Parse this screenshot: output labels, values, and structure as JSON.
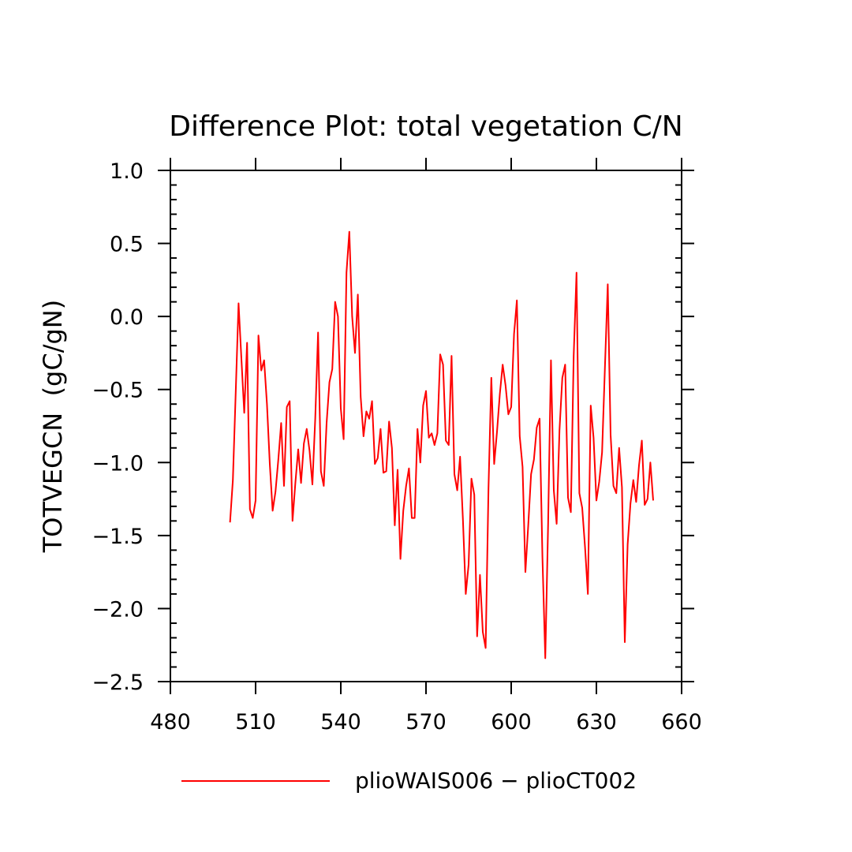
{
  "chart_data": {
    "type": "line",
    "title": "Difference Plot: total vegetation C/N",
    "xlabel": "",
    "ylabel": "TOTVEGCN  (gC/gN)",
    "xlim": [
      480,
      660
    ],
    "ylim": [
      -2.5,
      1.0
    ],
    "x_ticks": [
      480,
      510,
      540,
      570,
      600,
      630,
      660
    ],
    "x_tick_labels": [
      "480",
      "510",
      "540",
      "570",
      "600",
      "630",
      "660"
    ],
    "y_ticks": [
      1.0,
      0.5,
      0.0,
      -0.5,
      -1.0,
      -1.5,
      -2.0,
      -2.5
    ],
    "y_tick_labels": [
      "1.0",
      "0.5",
      "0.0",
      "−0.5",
      "−1.0",
      "−1.5",
      "−2.0",
      "−2.5"
    ],
    "grid": false,
    "legend_position": "bottom",
    "series": [
      {
        "name": "plioWAIS006 − plioCT002",
        "color": "#ff0000",
        "x": [
          501,
          502,
          503,
          504,
          505,
          506,
          507,
          508,
          509,
          510,
          511,
          512,
          513,
          514,
          515,
          516,
          517,
          518,
          519,
          520,
          521,
          522,
          523,
          524,
          525,
          526,
          527,
          528,
          529,
          530,
          531,
          532,
          533,
          534,
          535,
          536,
          537,
          538,
          539,
          540,
          541,
          542,
          543,
          544,
          545,
          546,
          547,
          548,
          549,
          550,
          551,
          552,
          553,
          554,
          555,
          556,
          557,
          558,
          559,
          560,
          561,
          562,
          563,
          564,
          565,
          566,
          567,
          568,
          569,
          570,
          571,
          572,
          573,
          574,
          575,
          576,
          577,
          578,
          579,
          580,
          581,
          582,
          583,
          584,
          585,
          586,
          587,
          588,
          589,
          590,
          591,
          592,
          593,
          594,
          595,
          596,
          597,
          598,
          599,
          600,
          601,
          602,
          603,
          604,
          605,
          606,
          607,
          608,
          609,
          610,
          611,
          612,
          613,
          614,
          615,
          616,
          617,
          618,
          619,
          620,
          621,
          622,
          623,
          624,
          625,
          626,
          627,
          628,
          629,
          630,
          631,
          632,
          633,
          634,
          635,
          636,
          637,
          638,
          639,
          640,
          641,
          642,
          643,
          644,
          645,
          646,
          647,
          648,
          649,
          650
        ],
        "values": [
          -1.41,
          -1.12,
          -0.52,
          0.09,
          -0.29,
          -0.66,
          -0.18,
          -1.32,
          -1.38,
          -1.26,
          -0.13,
          -0.37,
          -0.3,
          -0.6,
          -1.01,
          -1.33,
          -1.2,
          -0.98,
          -0.73,
          -1.16,
          -0.62,
          -0.58,
          -1.4,
          -1.14,
          -0.91,
          -1.14,
          -0.87,
          -0.77,
          -0.92,
          -1.15,
          -0.7,
          -0.11,
          -1.06,
          -1.16,
          -0.73,
          -0.45,
          -0.36,
          0.1,
          0.0,
          -0.63,
          -0.84,
          0.3,
          0.58,
          0.0,
          -0.25,
          0.15,
          -0.55,
          -0.82,
          -0.65,
          -0.7,
          -0.58,
          -1.01,
          -0.97,
          -0.77,
          -1.07,
          -1.06,
          -0.72,
          -0.9,
          -1.43,
          -1.05,
          -1.66,
          -1.33,
          -1.16,
          -1.04,
          -1.38,
          -1.38,
          -0.77,
          -1.0,
          -0.61,
          -0.51,
          -0.83,
          -0.8,
          -0.88,
          -0.8,
          -0.26,
          -0.33,
          -0.85,
          -0.88,
          -0.27,
          -1.08,
          -1.19,
          -0.96,
          -1.39,
          -1.9,
          -1.7,
          -1.11,
          -1.22,
          -2.19,
          -1.77,
          -2.16,
          -2.27,
          -1.18,
          -0.42,
          -1.01,
          -0.79,
          -0.53,
          -0.33,
          -0.47,
          -0.67,
          -0.62,
          -0.12,
          0.11,
          -0.82,
          -1.03,
          -1.75,
          -1.43,
          -1.08,
          -0.98,
          -0.76,
          -0.7,
          -1.65,
          -2.34,
          -1.42,
          -0.3,
          -1.19,
          -1.42,
          -0.78,
          -0.42,
          -0.33,
          -1.24,
          -1.34,
          -0.27,
          0.3,
          -1.21,
          -1.31,
          -1.58,
          -1.9,
          -0.61,
          -0.83,
          -1.26,
          -1.13,
          -0.93,
          -0.35,
          0.22,
          -0.81,
          -1.16,
          -1.21,
          -0.9,
          -1.17,
          -2.23,
          -1.56,
          -1.28,
          -1.12,
          -1.27,
          -1.02,
          -0.85,
          -1.29,
          -1.25,
          -1.0,
          -1.26
        ]
      }
    ]
  }
}
